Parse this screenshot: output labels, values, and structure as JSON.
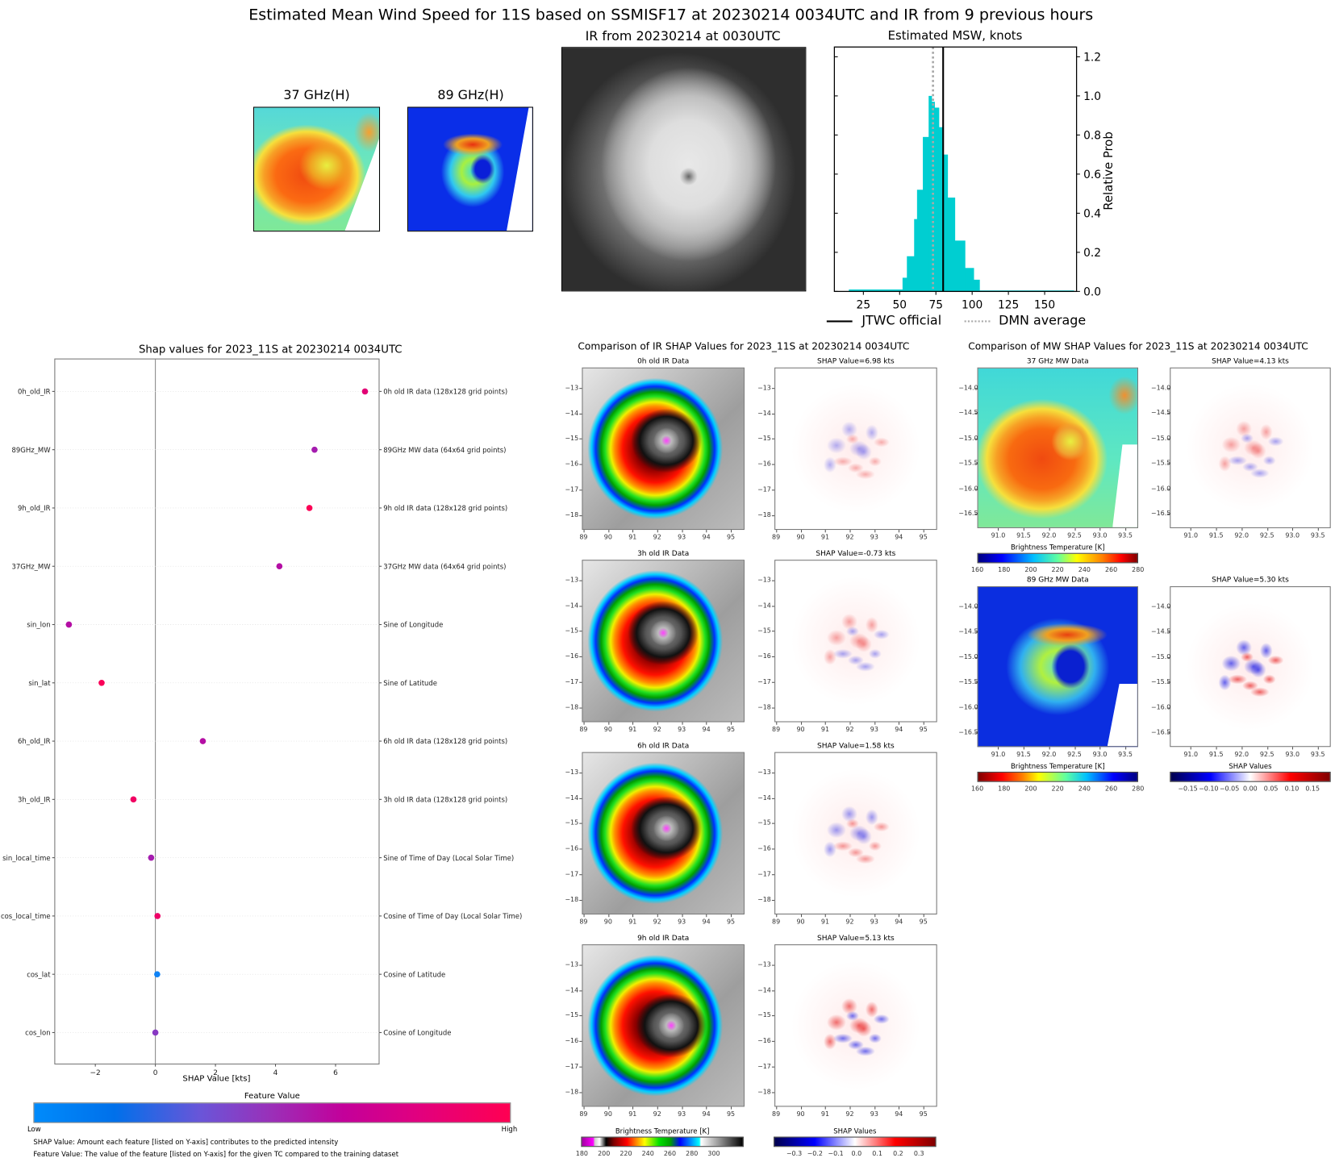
{
  "figure": {
    "main_title": "Estimated Mean Wind Speed for 11S based on SSMISF17 at 20230214 0034UTC and IR from 9 previous hours",
    "panel_37_title": "37 GHz(H)",
    "panel_89_title": "89 GHz(H)",
    "ir_title": "IR from 20230214 at 0030UTC"
  },
  "colors": {
    "hist_fill": "#00CED1",
    "jtwc_line": "#000000",
    "dmn_line": "#A9A9A9",
    "shap_low": "#008AFF",
    "shap_high": "#FF0052",
    "shap_neg": "#0000FF",
    "shap_pos": "#FF0000"
  },
  "chart_data": [
    {
      "id": "msw_histogram",
      "type": "bar",
      "title": "Estimated MSW, knots",
      "xlabel": "",
      "ylabel": "Relative Prob",
      "xlim": [
        5,
        172
      ],
      "ylim": [
        0,
        1.25
      ],
      "xticks": [
        "25",
        "50",
        "75",
        "100",
        "125",
        "150"
      ],
      "xtick_values": [
        25,
        50,
        75,
        100,
        125,
        150
      ],
      "yticks": [
        "0.0",
        "0.2",
        "0.4",
        "0.6",
        "0.8",
        "1.0",
        "1.2"
      ],
      "ytick_values": [
        0,
        0.2,
        0.4,
        0.6,
        0.8,
        1.0,
        1.2
      ],
      "bins": [
        {
          "x0": 15,
          "x1": 52,
          "y": 0.01
        },
        {
          "x0": 52,
          "x1": 55,
          "y": 0.07
        },
        {
          "x0": 55,
          "x1": 60,
          "y": 0.18
        },
        {
          "x0": 60,
          "x1": 62,
          "y": 0.37
        },
        {
          "x0": 62,
          "x1": 66,
          "y": 0.52
        },
        {
          "x0": 66,
          "x1": 70,
          "y": 0.79
        },
        {
          "x0": 70,
          "x1": 72,
          "y": 1.0
        },
        {
          "x0": 72,
          "x1": 74,
          "y": 0.97
        },
        {
          "x0": 74,
          "x1": 77,
          "y": 0.94
        },
        {
          "x0": 77,
          "x1": 80,
          "y": 0.84
        },
        {
          "x0": 80,
          "x1": 83,
          "y": 0.7
        },
        {
          "x0": 83,
          "x1": 88,
          "y": 0.48
        },
        {
          "x0": 88,
          "x1": 95,
          "y": 0.26
        },
        {
          "x0": 95,
          "x1": 101,
          "y": 0.12
        },
        {
          "x0": 101,
          "x1": 105,
          "y": 0.06
        },
        {
          "x0": 105,
          "x1": 170,
          "y": 0.005
        }
      ],
      "jtwc_official": 80,
      "dmn_average": 73,
      "legend": [
        {
          "label": "JTWC official",
          "style": "solid"
        },
        {
          "label": "DMN average",
          "style": "dotted"
        }
      ],
      "legend_position": "bottom"
    },
    {
      "id": "shap_summary",
      "type": "scatter",
      "title": "Shap values for 2023_11S at 20230214 0034UTC",
      "xlabel": "SHAP Value [kts]",
      "xlim": [
        -3.35,
        7.45
      ],
      "xticks": [
        "−2",
        "0",
        "2",
        "4",
        "6"
      ],
      "xtick_values": [
        -2,
        0,
        2,
        4,
        6
      ],
      "features": [
        {
          "name": "0h_old_IR",
          "desc": "0h old IR data (128x128 grid points)",
          "shap": 6.98,
          "feature_value": 0.83
        },
        {
          "name": "89GHz_MW",
          "desc": "89GHz MW data (64x64 grid points)",
          "shap": 5.3,
          "feature_value": 0.55
        },
        {
          "name": "9h_old_IR",
          "desc": "9h old IR data (128x128 grid points)",
          "shap": 5.13,
          "feature_value": 0.98
        },
        {
          "name": "37GHz_MW",
          "desc": "37GHz MW data (64x64 grid points)",
          "shap": 4.13,
          "feature_value": 0.6
        },
        {
          "name": "sin_lon",
          "desc": "Sine of Longitude",
          "shap": -2.88,
          "feature_value": 0.6
        },
        {
          "name": "sin_lat",
          "desc": "Sine of Latitude",
          "shap": -1.79,
          "feature_value": 0.97
        },
        {
          "name": "6h_old_IR",
          "desc": "6h old IR data (128x128 grid points)",
          "shap": 1.58,
          "feature_value": 0.6
        },
        {
          "name": "3h_old_IR",
          "desc": "3h old IR data (128x128 grid points)",
          "shap": -0.73,
          "feature_value": 0.92
        },
        {
          "name": "sin_local_time",
          "desc": "Sine of Time of Day (Local Solar Time)",
          "shap": -0.14,
          "feature_value": 0.55
        },
        {
          "name": "cos_local_time",
          "desc": "Cosine of Time of Day (Local Solar Time)",
          "shap": 0.07,
          "feature_value": 0.9
        },
        {
          "name": "cos_lat",
          "desc": "Cosine of Latitude",
          "shap": 0.06,
          "feature_value": 0.05
        },
        {
          "name": "cos_lon",
          "desc": "Cosine of Longitude",
          "shap": 0.0,
          "feature_value": 0.45
        }
      ],
      "colorbar": {
        "title": "Feature Value",
        "low": "Low",
        "high": "High"
      },
      "notes": [
        "SHAP Value: Amount each feature [listed on Y-axis] contributes to the predicted intensity",
        "Feature Value: The value of the feature [listed on Y-axis] for the given TC compared to the training dataset"
      ]
    },
    {
      "id": "ir_shap_comparison",
      "type": "heatmap",
      "title": "Comparison of IR SHAP Values for 2023_11S at 20230214 0034UTC",
      "xticks": [
        "89",
        "90",
        "91",
        "92",
        "93",
        "94",
        "95"
      ],
      "yticks": [
        "−13",
        "−14",
        "−15",
        "−16",
        "−17",
        "−18"
      ],
      "rows": [
        {
          "data_title": "0h old IR Data",
          "shap_title": "SHAP Value=6.98 kts"
        },
        {
          "data_title": "3h old IR Data",
          "shap_title": "SHAP Value=-0.73 kts"
        },
        {
          "data_title": "6h old IR Data",
          "shap_title": "SHAP Value=1.58 kts"
        },
        {
          "data_title": "9h old IR Data",
          "shap_title": "SHAP Value=5.13 kts"
        }
      ],
      "bt_colorbar": {
        "title": "Brightness Temperature [K]",
        "ticks": [
          "180",
          "200",
          "220",
          "240",
          "260",
          "280",
          "300"
        ]
      },
      "shap_colorbar": {
        "title": "SHAP Values",
        "ticks": [
          "−0.3",
          "−0.2",
          "−0.1",
          "0.0",
          "0.1",
          "0.2",
          "0.3"
        ]
      }
    },
    {
      "id": "mw_shap_comparison",
      "type": "heatmap",
      "title": "Comparison of MW SHAP Values for 2023_11S at 20230214 0034UTC",
      "xticks": [
        "91.0",
        "91.5",
        "92.0",
        "92.5",
        "93.0",
        "93.5"
      ],
      "yticks": [
        "−14.0",
        "−14.5",
        "−15.0",
        "−15.5",
        "−16.0",
        "−16.5"
      ],
      "rows": [
        {
          "data_title": "37 GHz MW Data",
          "shap_title": "SHAP Value=4.13 kts"
        },
        {
          "data_title": "89 GHz MW Data",
          "shap_title": "SHAP Value=5.30 kts"
        }
      ],
      "bt_colorbar_37": {
        "title": "Brightness Temperature [K]",
        "ticks": [
          "160",
          "180",
          "200",
          "220",
          "240",
          "260",
          "280"
        ]
      },
      "bt_colorbar_89": {
        "title": "Brightness Temperature [K]",
        "ticks": [
          "160",
          "180",
          "200",
          "220",
          "240",
          "260",
          "280"
        ]
      },
      "shap_colorbar": {
        "title": "SHAP Values",
        "ticks": [
          "−0.15",
          "−0.10",
          "−0.05",
          "0.00",
          "0.05",
          "0.10",
          "0.15"
        ]
      }
    }
  ]
}
